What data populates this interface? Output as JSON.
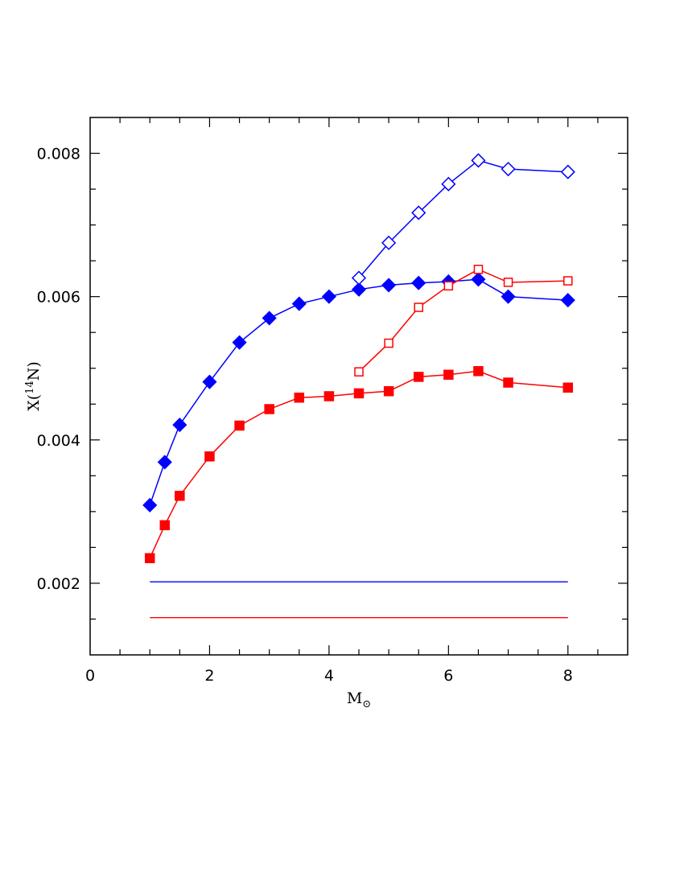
{
  "chart_data": {
    "type": "scatter",
    "xlabel": "M",
    "xlabel_sub": "⊙",
    "ylabel_pre": "X(",
    "ylabel_sup": "14",
    "ylabel_post": "N)",
    "xlim": [
      0,
      9
    ],
    "ylim": [
      0.001,
      0.0085
    ],
    "xticks": [
      0,
      2,
      4,
      6,
      8
    ],
    "xtick_labels": [
      "0",
      "2",
      "4",
      "6",
      "8"
    ],
    "xminor_step": 0.5,
    "yticks": [
      0.002,
      0.004,
      0.006,
      0.008
    ],
    "ytick_labels": [
      "0.002",
      "0.004",
      "0.006",
      "0.008"
    ],
    "yminor_step": 0.0005,
    "grid": false,
    "series": [
      {
        "color": "#0000ff",
        "marker": "diamond",
        "filled": true,
        "x": [
          1,
          1.25,
          1.5,
          2,
          2.5,
          3,
          3.5,
          4,
          4.5,
          5,
          5.5,
          6,
          6.5,
          7,
          8
        ],
        "y": [
          0.00309,
          0.00369,
          0.00421,
          0.00481,
          0.00536,
          0.0057,
          0.0059,
          0.006,
          0.0061,
          0.00616,
          0.00619,
          0.00621,
          0.00624,
          0.006,
          0.00595
        ]
      },
      {
        "color": "#0000ff",
        "marker": "diamond",
        "filled": false,
        "x": [
          4.5,
          5,
          5.5,
          6,
          6.5,
          7,
          8
        ],
        "y": [
          0.00626,
          0.00675,
          0.00717,
          0.00757,
          0.0079,
          0.00778,
          0.00774
        ]
      },
      {
        "color": "#ff0000",
        "marker": "square",
        "filled": true,
        "x": [
          1,
          1.25,
          1.5,
          2,
          2.5,
          3,
          3.5,
          4,
          4.5,
          5,
          5.5,
          6,
          6.5,
          7,
          8
        ],
        "y": [
          0.00235,
          0.00281,
          0.00322,
          0.00377,
          0.0042,
          0.00443,
          0.00459,
          0.00461,
          0.00465,
          0.00468,
          0.00488,
          0.00491,
          0.00496,
          0.0048,
          0.00473
        ]
      },
      {
        "color": "#ff0000",
        "marker": "square",
        "filled": false,
        "x": [
          4.5,
          5,
          5.5,
          6,
          6.5,
          7,
          8
        ],
        "y": [
          0.00495,
          0.00535,
          0.00585,
          0.00615,
          0.00638,
          0.0062,
          0.00622
        ]
      }
    ],
    "reference_lines": [
      {
        "color": "#0000ff",
        "y": 0.00202,
        "x_from": 1,
        "x_to": 8
      },
      {
        "color": "#ff0000",
        "y": 0.00152,
        "x_from": 1,
        "x_to": 8
      }
    ]
  }
}
